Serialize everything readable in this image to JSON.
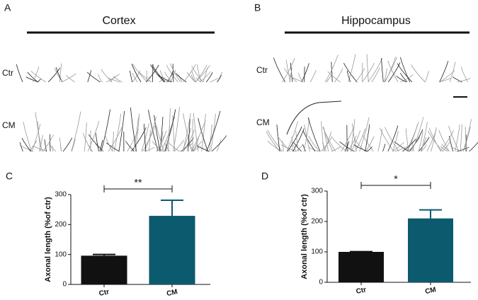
{
  "panels": {
    "a": {
      "letter": "A",
      "title": "Cortex",
      "rows": [
        "Ctr",
        "CM"
      ]
    },
    "b": {
      "letter": "B",
      "title": "Hippocampus",
      "rows": [
        "Ctr",
        "CM"
      ]
    },
    "c": {
      "letter": "C"
    },
    "d": {
      "letter": "D"
    }
  },
  "chart_data": [
    {
      "type": "bar",
      "ylabel": "Axonal length (%of ctr)",
      "categories": [
        "Ctr",
        "CM"
      ],
      "values": [
        96,
        229
      ],
      "errors": [
        4,
        52
      ],
      "colors": [
        "#111111",
        "#0b5a6e"
      ],
      "ylim": [
        0,
        300
      ],
      "yticks": [
        0,
        100,
        200,
        300
      ],
      "annotation": "**"
    },
    {
      "type": "bar",
      "ylabel": "Axonal length (%of ctr)",
      "categories": [
        "Ctr",
        "CM"
      ],
      "values": [
        100,
        210
      ],
      "errors": [
        1,
        28
      ],
      "colors": [
        "#111111",
        "#0b5a6e"
      ],
      "ylim": [
        0,
        300
      ],
      "yticks": [
        0,
        100,
        200,
        300
      ],
      "annotation": "*"
    }
  ]
}
